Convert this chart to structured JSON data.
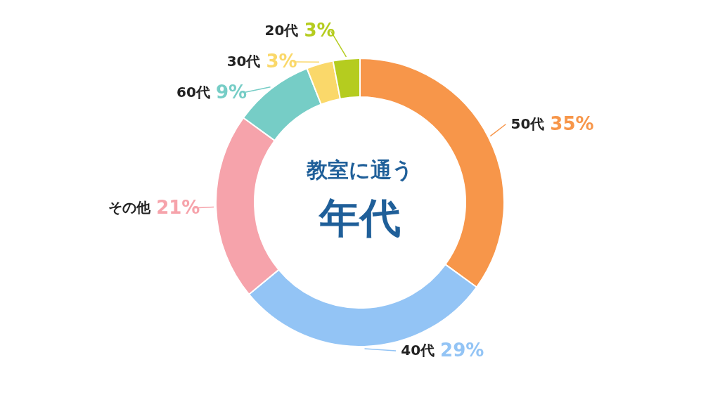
{
  "chart_data": {
    "type": "donut",
    "title": "教室に通う",
    "subtitle": "年代",
    "categories": [
      "50代",
      "40代",
      "その他",
      "60代",
      "30代",
      "20代"
    ],
    "values": [
      35,
      29,
      21,
      9,
      3,
      3
    ],
    "value_labels": [
      "35%",
      "29%",
      "21%",
      "9%",
      "3%",
      "3%"
    ],
    "colors": [
      "#f7964a",
      "#93c4f5",
      "#f6a3ab",
      "#76cdc6",
      "#fad86a",
      "#b5cc1f"
    ]
  }
}
